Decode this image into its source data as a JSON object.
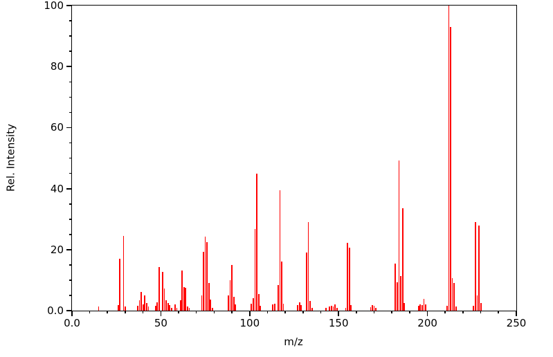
{
  "chart_data": {
    "type": "bar",
    "subtype": "mass-spectrum-stick-plot",
    "title": "",
    "xlabel": "m/z",
    "ylabel": "Rel. Intensity",
    "xlim": [
      0,
      250
    ],
    "ylim": [
      0,
      100
    ],
    "grid": false,
    "legend": "none",
    "bar_color": "#ff0000",
    "frame_color": "#000000",
    "background_color": "#ffffff",
    "x_ticks": {
      "major": [
        0,
        50,
        100,
        150,
        200,
        250
      ],
      "labels": [
        "0.0",
        "50",
        "100",
        "150",
        "200",
        "250"
      ],
      "minor_step": 10
    },
    "y_ticks": {
      "major": [
        0,
        20,
        40,
        60,
        80,
        100
      ],
      "labels": [
        "0.0",
        "20",
        "40",
        "60",
        "80",
        "100"
      ],
      "minor_step": 5
    },
    "peaks_format": [
      "mz",
      "rel_intensity"
    ],
    "peaks": [
      [
        15,
        1.4
      ],
      [
        26,
        1.9
      ],
      [
        27,
        17.0
      ],
      [
        29,
        24.5
      ],
      [
        30,
        1.4
      ],
      [
        37,
        1.5
      ],
      [
        38,
        3.4
      ],
      [
        39,
        6.2
      ],
      [
        40,
        2.0
      ],
      [
        41,
        5.0
      ],
      [
        42,
        2.4
      ],
      [
        43,
        1.3
      ],
      [
        47,
        1.6
      ],
      [
        48,
        2.8
      ],
      [
        49,
        14.2
      ],
      [
        51,
        12.6
      ],
      [
        52,
        7.3
      ],
      [
        53,
        3.4
      ],
      [
        54,
        2.5
      ],
      [
        55,
        1.8
      ],
      [
        56,
        1.0
      ],
      [
        58,
        2.0
      ],
      [
        59,
        0.8
      ],
      [
        61,
        3.5
      ],
      [
        62,
        13.2
      ],
      [
        63,
        7.8
      ],
      [
        64,
        7.4
      ],
      [
        65,
        1.4
      ],
      [
        66,
        1.0
      ],
      [
        73,
        5.0
      ],
      [
        74,
        19.2
      ],
      [
        75,
        24.2
      ],
      [
        76,
        22.4
      ],
      [
        77,
        9.0
      ],
      [
        78,
        3.6
      ],
      [
        79,
        1.0
      ],
      [
        88,
        5.0
      ],
      [
        89,
        10.0
      ],
      [
        90,
        15.0
      ],
      [
        91,
        4.6
      ],
      [
        92,
        2.0
      ],
      [
        101,
        2.2
      ],
      [
        102,
        4.1
      ],
      [
        103,
        26.8
      ],
      [
        104,
        44.8
      ],
      [
        105,
        5.5
      ],
      [
        106,
        1.5
      ],
      [
        113,
        2.0
      ],
      [
        114,
        2.2
      ],
      [
        116,
        8.4
      ],
      [
        117,
        39.4
      ],
      [
        118,
        16.1
      ],
      [
        119,
        2.3
      ],
      [
        127,
        1.8
      ],
      [
        128,
        2.7
      ],
      [
        129,
        1.8
      ],
      [
        132,
        19.0
      ],
      [
        133,
        29.1
      ],
      [
        134,
        3.1
      ],
      [
        135,
        1.0
      ],
      [
        143,
        1.0
      ],
      [
        145,
        1.3
      ],
      [
        146,
        1.6
      ],
      [
        147,
        1.4
      ],
      [
        148,
        2.0
      ],
      [
        149,
        0.9
      ],
      [
        154,
        1.0
      ],
      [
        155,
        22.3
      ],
      [
        156,
        20.6
      ],
      [
        157,
        1.8
      ],
      [
        168,
        1.2
      ],
      [
        169,
        1.9
      ],
      [
        170,
        1.5
      ],
      [
        171,
        0.8
      ],
      [
        182,
        15.4
      ],
      [
        183,
        9.2
      ],
      [
        184,
        49.3
      ],
      [
        185,
        11.4
      ],
      [
        186,
        33.6
      ],
      [
        187,
        2.4
      ],
      [
        195,
        1.5
      ],
      [
        196,
        2.1
      ],
      [
        197,
        1.8
      ],
      [
        198,
        3.8
      ],
      [
        199,
        2.1
      ],
      [
        211,
        1.6
      ],
      [
        212,
        100.0
      ],
      [
        213,
        93.0
      ],
      [
        214,
        10.6
      ],
      [
        215,
        9.0
      ],
      [
        216,
        1.3
      ],
      [
        226,
        1.7
      ],
      [
        227,
        29.0
      ],
      [
        228,
        5.1
      ],
      [
        229,
        28.0
      ],
      [
        230,
        2.6
      ]
    ]
  }
}
